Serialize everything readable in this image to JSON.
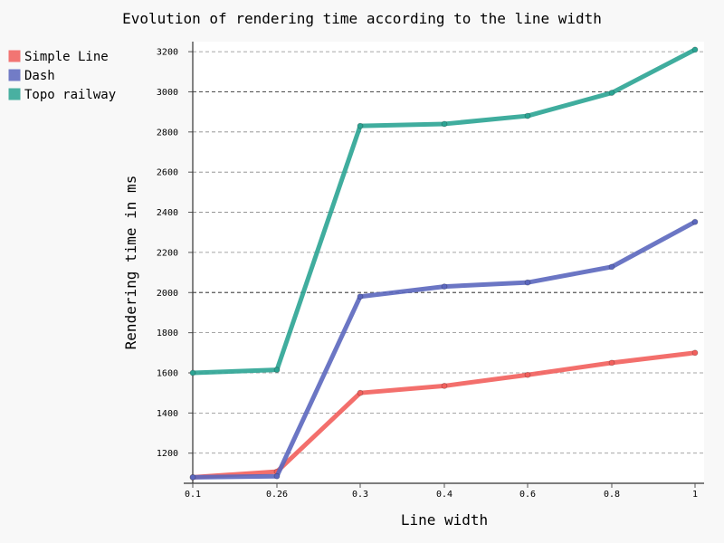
{
  "chart_data": {
    "type": "line",
    "title": "Evolution of rendering time according to the line width",
    "xlabel": "Line width",
    "ylabel": "Rendering time in ms",
    "x": [
      "0.1",
      "0.26",
      "0.3",
      "0.4",
      "0.6",
      "0.8",
      "1"
    ],
    "ylim": [
      1050,
      3250
    ],
    "yticks": [
      1200,
      1400,
      1600,
      1800,
      2000,
      2200,
      2400,
      2600,
      2800,
      3000,
      3200
    ],
    "major_yticks": [
      2000,
      3000
    ],
    "grid": true,
    "legend": "top-left",
    "series": [
      {
        "name": "Simple Line",
        "color": "#F25F5C",
        "values": [
          1080,
          1108,
          1500,
          1535,
          1590,
          1650,
          1700
        ]
      },
      {
        "name": "Dash",
        "color": "#5B67BE",
        "values": [
          1080,
          1085,
          1980,
          2030,
          2050,
          2128,
          2352
        ]
      },
      {
        "name": "Topo railway",
        "color": "#2BA493",
        "values": [
          1600,
          1615,
          2830,
          2840,
          2880,
          2995,
          3210
        ]
      }
    ]
  }
}
